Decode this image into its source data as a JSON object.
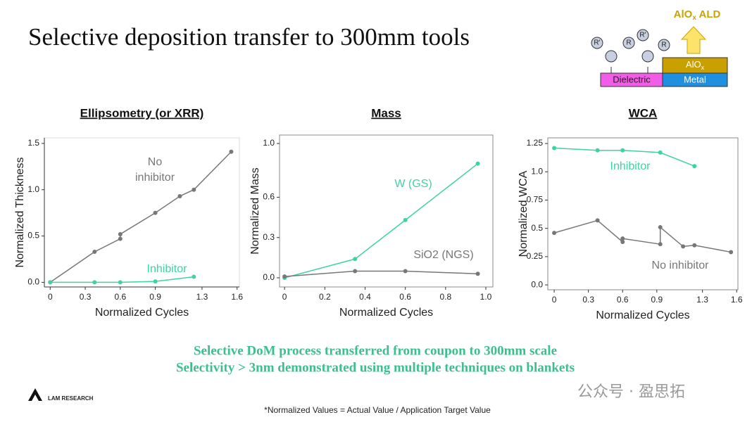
{
  "slide": {
    "title": "Selective deposition transfer to 300mm tools",
    "diagram": {
      "ald": {
        "base": "AlO",
        "sub": "x",
        "rest": " ALD"
      },
      "layer": {
        "base": "AlO",
        "sub": "x"
      },
      "metal": "Metal",
      "dielectric": "Dielectric",
      "r": "R",
      "rp": "R'"
    },
    "summary": [
      "Selective DoM process transferred from coupon to 300mm scale",
      "Selectivity > 3nm demonstrated using multiple techniques on blankets"
    ],
    "logo": "LAM RESEARCH",
    "watermark": "公众号 · 盈思拓",
    "footnote": "*Normalized Values = Actual Value / Application Target Value"
  },
  "chart_data": [
    {
      "type": "line",
      "title": "Ellipsometry (or XRR)",
      "xlabel": "Normalized Cycles",
      "ylabel": "Normalized Thickness",
      "xlim": [
        -0.05,
        1.62
      ],
      "ylim": [
        -0.05,
        1.56
      ],
      "xticks": [
        0,
        0.3,
        0.6,
        0.9,
        1.3,
        1.6
      ],
      "yticks": [
        {
          "value": 0,
          "label": "0.0"
        },
        0.5,
        {
          "value": 1,
          "label": "1.0"
        },
        1.5
      ],
      "series": [
        {
          "name": "No inhibitor",
          "color": "#777777",
          "x": [
            0,
            0.38,
            0.6,
            0.6,
            0.9,
            1.11,
            1.23,
            1.55
          ],
          "values": [
            0,
            0.33,
            0.47,
            0.52,
            0.75,
            0.93,
            1.0,
            1.41
          ]
        },
        {
          "name": "Inhibitor",
          "color": "#3fd2a2",
          "x": [
            0,
            0.38,
            0.6,
            0.9,
            1.23
          ],
          "values": [
            0,
            0,
            0,
            0.01,
            0.06
          ]
        }
      ]
    },
    {
      "type": "line",
      "title": "Mass",
      "xlabel": "Normalized Cycles",
      "ylabel": "Normalized Mass",
      "xlim": [
        -0.025,
        1.035
      ],
      "ylim": [
        -0.068,
        1.063
      ],
      "xticks": [
        0,
        0.2,
        0.4,
        0.6,
        0.8,
        {
          "value": 1,
          "label": "1.0"
        }
      ],
      "yticks": [
        {
          "value": 0,
          "label": "0.0"
        },
        0.3,
        0.6,
        {
          "value": 1,
          "label": "1.0"
        }
      ],
      "series": [
        {
          "name": "W (GS)",
          "color": "#3fd2a2",
          "x": [
            0,
            0.35,
            0.6,
            0.96
          ],
          "values": [
            0,
            0.14,
            0.43,
            0.85
          ]
        },
        {
          "name": "SiO2 (NGS)",
          "color": "#777777",
          "x": [
            0,
            0.35,
            0.6,
            0.96
          ],
          "values": [
            0.01,
            0.05,
            0.05,
            0.03
          ]
        }
      ]
    },
    {
      "type": "line",
      "title": "WCA",
      "xlabel": "Normalized Cycles",
      "ylabel": "Normalized WCA",
      "xlim": [
        -0.056,
        1.611
      ],
      "ylim": [
        -0.043,
        1.3
      ],
      "xticks": [
        0,
        0.3,
        0.6,
        0.9,
        1.3,
        1.6
      ],
      "yticks": [
        {
          "value": 0,
          "label": "0.0"
        },
        0.25,
        0.5,
        0.75,
        {
          "value": 1,
          "label": "1.0"
        },
        1.25
      ],
      "series": [
        {
          "name": "Inhibitor",
          "color": "#3fd2a2",
          "x": [
            0,
            0.38,
            0.6,
            0.93,
            1.23
          ],
          "values": [
            1.21,
            1.19,
            1.19,
            1.17,
            1.05
          ]
        },
        {
          "name": "No inhibitor",
          "color": "#777777",
          "x": [
            0,
            0.38,
            0.6,
            0.6,
            0.93,
            0.93,
            1.13,
            1.23,
            1.55
          ],
          "values": [
            0.46,
            0.57,
            0.38,
            0.41,
            0.36,
            0.51,
            0.34,
            0.35,
            0.29
          ]
        }
      ]
    }
  ]
}
